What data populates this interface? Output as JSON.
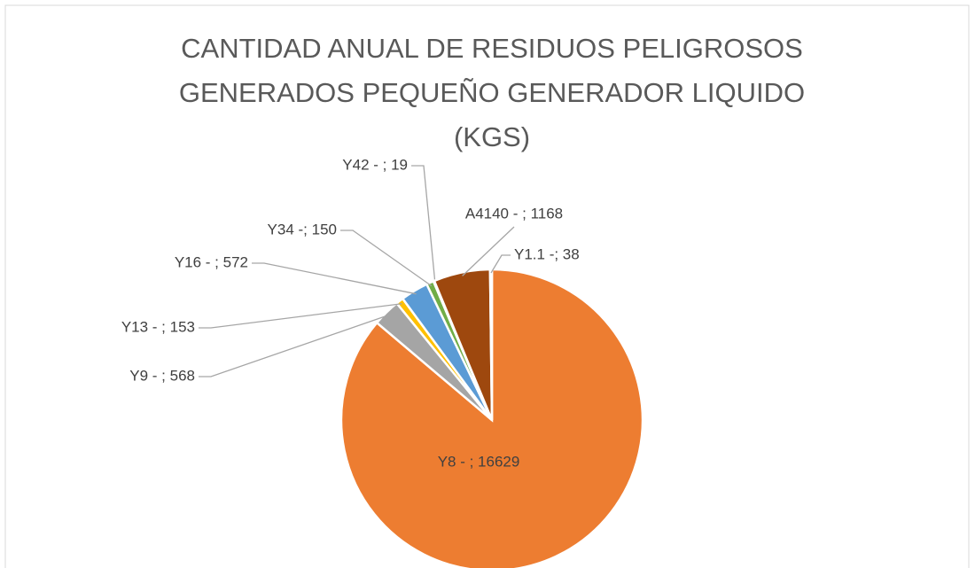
{
  "chart_data": {
    "type": "pie",
    "title": "CANTIDAD ANUAL DE RESIDUOS PELIGROSOS GENERADOS PEQUEÑO GENERADOR LIQUIDO (KGS)",
    "categories": [
      "Y8 -",
      "Y9 -",
      "Y13 -",
      "Y16 -",
      "Y34 -",
      "Y42 -",
      "A4140 -",
      "Y1.1 -"
    ],
    "values": [
      16629,
      568,
      153,
      572,
      150,
      19,
      1168,
      38
    ],
    "value_labels": [
      "Y8 - ; 16629",
      "Y9 - ; 568",
      "Y13 - ; 153",
      "Y16 - ; 572",
      "Y34 -; 150",
      "Y42 - ; 19",
      "A4140 - ; 1168",
      "Y1.1 -; 38"
    ],
    "colors": [
      "#ed7d31",
      "#a5a5a5",
      "#ffc000",
      "#5b9bd5",
      "#70ad47",
      "#70ad47",
      "#9e480e",
      "#e8eef7"
    ]
  }
}
